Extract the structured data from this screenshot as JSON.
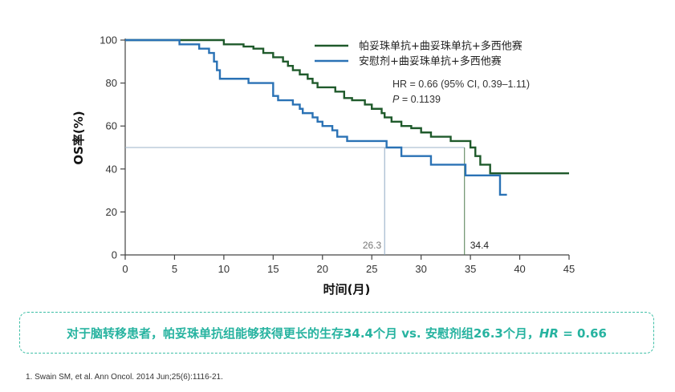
{
  "chart_data": {
    "type": "line",
    "step": true,
    "xlabel": "时间(月)",
    "ylabel": "OS率(%)",
    "xlim": [
      0,
      45
    ],
    "ylim": [
      0,
      100
    ],
    "xticks": [
      0,
      5,
      10,
      15,
      20,
      25,
      30,
      35,
      40,
      45
    ],
    "yticks": [
      0,
      20,
      40,
      60,
      80,
      100
    ],
    "grid": false,
    "legend_position": "top-right",
    "series": [
      {
        "name": "帕妥珠单抗+曲妥珠单抗+多西他赛",
        "color": "#1f5a2b",
        "x": [
          0,
          10,
          12,
          13,
          14,
          15,
          16,
          16.5,
          17,
          17.7,
          18.5,
          19,
          19.5,
          20,
          21.3,
          22.2,
          23,
          24.3,
          25,
          26,
          26.3,
          27,
          28,
          29,
          30,
          31,
          33,
          35,
          35.5,
          36,
          37,
          45
        ],
        "y": [
          100,
          98,
          97,
          96,
          94,
          92,
          90,
          88,
          86,
          84,
          82,
          80,
          78,
          78,
          76,
          73,
          72,
          70,
          68,
          66,
          64,
          62,
          60,
          59,
          57,
          55,
          53,
          50,
          46,
          42,
          38,
          38
        ]
      },
      {
        "name": "安慰剂+曲妥珠单抗+多西他赛",
        "color": "#2a72b5",
        "x": [
          0,
          5.5,
          7.5,
          8.5,
          9,
          9.3,
          9.6,
          12.5,
          15,
          15.5,
          17,
          17.7,
          18,
          19,
          19.5,
          20,
          21,
          21.5,
          22.5,
          26.5,
          28,
          31,
          34.5,
          38,
          38.7
        ],
        "y": [
          100,
          98,
          96,
          94,
          90,
          86,
          82,
          80,
          74,
          72,
          70,
          68,
          66,
          64,
          62,
          60,
          58,
          55,
          53,
          50,
          46,
          42,
          37,
          28,
          28
        ]
      }
    ],
    "medians": [
      {
        "series": 1,
        "value": 26.3,
        "label": "26.3"
      },
      {
        "series": 0,
        "value": 34.4,
        "label": "34.4"
      }
    ],
    "annotations": {
      "hr_text": "HR = 0.66 (95% CI, 0.39–1.11)",
      "p_label": "P",
      "p_value": " = 0.1139"
    }
  },
  "summary": {
    "text": "对于脑转移患者，帕妥珠单抗组能够获得更长的生存34.4个月 vs. 安慰剂组26.3个月，",
    "hr_label": "HR",
    "hr_value": " = 0.66"
  },
  "reference": "1.   Swain SM, et al. Ann Oncol. 2014 Jun;25(6):1116-21."
}
